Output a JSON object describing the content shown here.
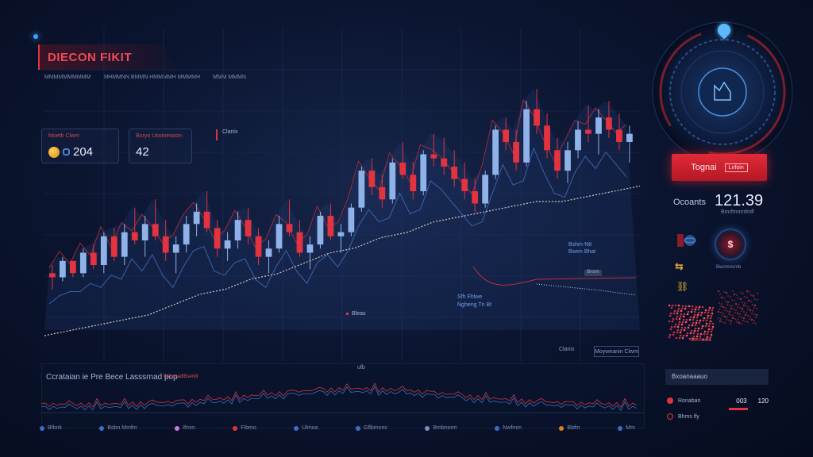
{
  "header": {
    "title": "DIECON FIKIT",
    "subtitle_items": [
      "MMMMMMMMMM",
      "MHMMNN BMMN HMMMMH MMMMH",
      "MMM MMMN"
    ]
  },
  "cards": [
    {
      "label": "Moeth Clwm",
      "value": "204"
    },
    {
      "label": "Buryo Usomeooon",
      "value": "42"
    }
  ],
  "chips": {
    "top": "Clanix",
    "bottom_left": "Clanix",
    "bottom_right": "Moyweanin Clwm"
  },
  "annotations": {
    "a1": "Bleas",
    "a2_line1": "Sfh Fhlwe",
    "a2_line2": "Ngheng Tn Bt",
    "a3_line1": "Bshm-Ntt",
    "a3_line2": "Bsem Bhat",
    "a4": "Bnsm"
  },
  "lower_panel": {
    "title": "Ccrataian ie Pre Bece Lasssrnad pop",
    "tag": "BKbsvadlBsenitl",
    "center_label": "ufb"
  },
  "legend": [
    {
      "label": "Bfbnk",
      "color": "#3a6fc4"
    },
    {
      "label": "Bsbn Mmfm",
      "color": "#3a6fc4"
    },
    {
      "label": "Ifmm",
      "color": "#c77bd6"
    },
    {
      "label": "Fibmo",
      "color": "#e2333f"
    },
    {
      "label": "Ulmoa",
      "color": "#3a6fc4"
    },
    {
      "label": "Gflbmonc",
      "color": "#3a6fc4"
    },
    {
      "label": "Bmbnorm",
      "color": "#7a8fb8"
    },
    {
      "label": "Nwfmm",
      "color": "#3a6fc4"
    },
    {
      "label": "Bbfm",
      "color": "#e07b2a"
    },
    {
      "label": "Mm",
      "color": "#3a6fc4"
    }
  ],
  "right_panel": {
    "signal_label": "Tognai",
    "signal_tag": "Lnfoin",
    "counts_label": "Ocoants",
    "counts_value": "121.39",
    "counts_sub": "Bmrfmmnfmfl",
    "target_caption": "Bwomosmb",
    "target_glyph": "$",
    "side_caption": "Btmfmmn",
    "list_head": "Bxoanaaauo",
    "list_rows": [
      {
        "label": "Ronaban",
        "v1": "003",
        "v2": "120"
      },
      {
        "label": "Bhms lfy"
      }
    ]
  },
  "chart_data": {
    "type": "candlestick",
    "title": "",
    "series": [
      {
        "name": "",
        "candles": [
          [
            0,
            10,
            12,
            6,
            9
          ],
          [
            1,
            9,
            14,
            8,
            13
          ],
          [
            2,
            13,
            13,
            9,
            10
          ],
          [
            3,
            10,
            16,
            9,
            15
          ],
          [
            4,
            15,
            17,
            11,
            12
          ],
          [
            5,
            12,
            20,
            10,
            19
          ],
          [
            6,
            19,
            21,
            13,
            14
          ],
          [
            7,
            14,
            22,
            12,
            20
          ],
          [
            8,
            20,
            26,
            17,
            18
          ],
          [
            9,
            18,
            24,
            14,
            22
          ],
          [
            10,
            22,
            28,
            18,
            19
          ],
          [
            11,
            19,
            23,
            13,
            15
          ],
          [
            12,
            15,
            19,
            10,
            17
          ],
          [
            13,
            17,
            24,
            15,
            22
          ],
          [
            14,
            22,
            27,
            19,
            25
          ],
          [
            15,
            25,
            30,
            20,
            21
          ],
          [
            16,
            21,
            23,
            14,
            16
          ],
          [
            17,
            16,
            20,
            13,
            18
          ],
          [
            18,
            18,
            25,
            16,
            23
          ],
          [
            19,
            23,
            26,
            17,
            19
          ],
          [
            20,
            19,
            21,
            12,
            14
          ],
          [
            21,
            14,
            18,
            10,
            16
          ],
          [
            22,
            16,
            24,
            15,
            22
          ],
          [
            23,
            22,
            28,
            19,
            20
          ],
          [
            24,
            20,
            23,
            14,
            15
          ],
          [
            25,
            15,
            19,
            11,
            17
          ],
          [
            26,
            17,
            25,
            16,
            24
          ],
          [
            27,
            24,
            27,
            18,
            19
          ],
          [
            28,
            19,
            22,
            15,
            20
          ],
          [
            29,
            20,
            27,
            19,
            26
          ],
          [
            30,
            26,
            36,
            25,
            35
          ],
          [
            31,
            35,
            38,
            29,
            31
          ],
          [
            32,
            31,
            34,
            26,
            28
          ],
          [
            33,
            28,
            38,
            27,
            37
          ],
          [
            34,
            37,
            42,
            33,
            34
          ],
          [
            35,
            34,
            37,
            28,
            30
          ],
          [
            36,
            30,
            40,
            29,
            39
          ],
          [
            37,
            39,
            44,
            36,
            38
          ],
          [
            38,
            38,
            43,
            34,
            36
          ],
          [
            39,
            36,
            40,
            31,
            33
          ],
          [
            40,
            33,
            37,
            28,
            30
          ],
          [
            41,
            30,
            33,
            25,
            27
          ],
          [
            42,
            27,
            35,
            26,
            34
          ],
          [
            43,
            34,
            46,
            33,
            45
          ],
          [
            44,
            45,
            48,
            40,
            42
          ],
          [
            45,
            42,
            45,
            35,
            37
          ],
          [
            46,
            37,
            52,
            36,
            50
          ],
          [
            47,
            50,
            55,
            44,
            46
          ],
          [
            48,
            46,
            49,
            38,
            40
          ],
          [
            49,
            40,
            43,
            33,
            35
          ],
          [
            50,
            35,
            42,
            32,
            40
          ],
          [
            51,
            40,
            47,
            38,
            45
          ],
          [
            52,
            45,
            51,
            42,
            44
          ],
          [
            53,
            44,
            50,
            39,
            48
          ],
          [
            54,
            48,
            52,
            43,
            45
          ],
          [
            55,
            45,
            49,
            40,
            42
          ],
          [
            56,
            42,
            46,
            37,
            44
          ]
        ]
      },
      {
        "name": "",
        "type": "line",
        "values": [
          2,
          3,
          4,
          5,
          6,
          8,
          10,
          11,
          13,
          14,
          16,
          18,
          19,
          21,
          22,
          24,
          25,
          26,
          27,
          28,
          28,
          29,
          30,
          31
        ]
      }
    ]
  }
}
